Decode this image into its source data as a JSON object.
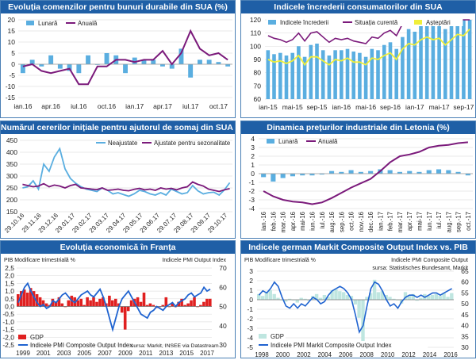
{
  "chart_data": [
    {
      "id": "durable",
      "type": "bar+line",
      "title": "Evoluția comenzilor pentru bunuri durabile din SUA (%)",
      "legend": [
        "Lunară",
        "Anuală"
      ],
      "yticks": [
        "20",
        "15",
        "10",
        "5",
        "0",
        "-5",
        "-10",
        "-15"
      ],
      "ylim": [
        -15,
        20
      ],
      "xticks": [
        "ian.16",
        "apr.16",
        "iul.16",
        "oct.16",
        "ian.17",
        "apr.17",
        "iul.17",
        "oct.17"
      ],
      "monthly": [
        -4,
        2,
        -1,
        4,
        -2,
        -3,
        -4,
        4,
        0,
        5,
        4,
        -4,
        3,
        2,
        2,
        -1,
        -2,
        7,
        -6,
        2,
        2,
        1,
        -1
      ],
      "annual": [
        -1,
        0,
        -3,
        -4,
        -3,
        -2,
        -9,
        -9,
        -1,
        -1,
        2,
        2,
        1,
        2,
        2,
        6,
        0,
        5,
        15,
        7,
        4,
        5,
        2
      ]
    },
    {
      "id": "confidence",
      "type": "bar+line",
      "title": "Indicele încrederii consumatorilor din SUA",
      "legend": [
        "Indicele încrederii",
        "Situația curentă",
        "Așteptări"
      ],
      "yticks": [
        "120",
        "110",
        "100",
        "90",
        "80",
        "70",
        "60"
      ],
      "ylim": [
        60,
        120
      ],
      "xticks": [
        "ian-15",
        "mai-15",
        "sep-15",
        "ian-16",
        "mai-16",
        "sep-16",
        "ian-17",
        "mai-17",
        "sep-17"
      ],
      "index": [
        97,
        94,
        95,
        93,
        95,
        100,
        92,
        101,
        102,
        97,
        93,
        97,
        97,
        98,
        96,
        95,
        92,
        98,
        97,
        101,
        103,
        98,
        107,
        113,
        111,
        116,
        119,
        117,
        118,
        113,
        117,
        121,
        120,
        126
      ],
      "current": [
        108,
        106,
        105,
        103,
        105,
        110,
        104,
        110,
        111,
        107,
        103,
        106,
        105,
        106,
        104,
        103,
        102,
        107,
        106,
        110,
        112,
        108,
        117,
        123,
        121,
        126,
        132,
        130,
        130,
        124,
        130,
        132,
        131,
        134
      ],
      "expectations": [
        90,
        88,
        89,
        87,
        89,
        93,
        86,
        92,
        92,
        89,
        86,
        90,
        89,
        91,
        88,
        88,
        86,
        91,
        90,
        93,
        95,
        90,
        98,
        102,
        101,
        105,
        107,
        105,
        106,
        101,
        105,
        109,
        108,
        113
      ]
    },
    {
      "id": "claims",
      "type": "line",
      "title": "Numărul cererilor inițiale pentru ajutorul de somaj din SUA (mii)",
      "legend": [
        "Neajustate",
        "Ajustate pentru sezonalitate"
      ],
      "yticks": [
        "450",
        "400",
        "350",
        "300",
        "250",
        "200",
        "150"
      ],
      "ylim": [
        150,
        450
      ],
      "xticks": [
        "29.10.16",
        "29.11.16",
        "29.12.16",
        "29.01.17",
        "29.02.17",
        "29.03.17",
        "29.04.17",
        "29.05.17",
        "29.06.17",
        "29.07.17",
        "29.08.17",
        "29.09.17",
        "29.10.17"
      ],
      "unadjusted": [
        250,
        255,
        280,
        245,
        350,
        320,
        380,
        415,
        330,
        290,
        270,
        255,
        245,
        240,
        235,
        250,
        240,
        225,
        230,
        222,
        215,
        225,
        240,
        235,
        225,
        220,
        230,
        220,
        245,
        235,
        225,
        230,
        260,
        238,
        225,
        230,
        232,
        220,
        242,
        272
      ],
      "adjusted": [
        265,
        260,
        255,
        258,
        268,
        255,
        262,
        258,
        250,
        260,
        265,
        250,
        248,
        245,
        243,
        250,
        240,
        242,
        245,
        240,
        238,
        244,
        248,
        242,
        245,
        240,
        250,
        245,
        248,
        242,
        250,
        255,
        275,
        265,
        258,
        245,
        240,
        235,
        242,
        247
      ]
    },
    {
      "id": "latvia",
      "type": "bar+line",
      "title": "Dinamica prețurilor industriale din Letonia (%)",
      "legend": [
        "Lunară",
        "Anuală"
      ],
      "yticks": [
        "4",
        "3",
        "2",
        "1",
        "0",
        "-1",
        "-2",
        "-3",
        "-4"
      ],
      "ylim": [
        -4,
        4
      ],
      "xticks": [
        "ian.-16",
        "feb.-16",
        "mar.-16",
        "apr.-16",
        "mai-16",
        "iun.-16",
        "iul.-16",
        "aug.-16",
        "sep.-16",
        "oct.-16",
        "nov.-16",
        "dec.-16",
        "ian.-17",
        "feb.-17",
        "mar.-17",
        "apr.-17",
        "mai-17",
        "iun.-17",
        "iul.-17",
        "aug.-17",
        "sep.-17",
        "oct.-17"
      ],
      "monthly": [
        -0.4,
        -0.9,
        -0.5,
        -0.3,
        -0.2,
        -0.2,
        -0.1,
        0.3,
        0.2,
        0.4,
        0.2,
        0.3,
        0.5,
        0.4,
        0.2,
        0.3,
        0.2,
        0.4,
        0.5,
        0.4,
        0.2,
        -0.2
      ],
      "annual": [
        -2.0,
        -2.6,
        -3.0,
        -3.2,
        -3.3,
        -3.5,
        -3.3,
        -2.8,
        -2.2,
        -1.6,
        -1.1,
        -0.6,
        0.3,
        1.3,
        2.0,
        2.2,
        2.5,
        3.0,
        3.2,
        3.3,
        3.5,
        3.6
      ]
    },
    {
      "id": "france",
      "type": "bar+line",
      "title": "Evoluția economică în Franța",
      "left_axis": "PIB Modificare trimestrială %",
      "right_axis": "Indicele PMI Output Index",
      "legend": [
        "GDP",
        "Indicele PMI Composite Output Index"
      ],
      "source": "sursa: Markit, INSEE via Datastream",
      "yticks_left": [
        "2,5",
        "2,0",
        "1,5",
        "1,0",
        "0,5",
        "0,0",
        "-0,5",
        "-1,0",
        "-1,5",
        "-2,0",
        "-2,5"
      ],
      "yticks_right": [
        "70",
        "60",
        "50",
        "40",
        "30"
      ],
      "xticks": [
        "1999",
        "2001",
        "2003",
        "2005",
        "2007",
        "2009",
        "2011",
        "2013",
        "2015",
        "2017"
      ],
      "gdp": [
        0.8,
        1.0,
        1.1,
        0.9,
        1.2,
        1.0,
        0.8,
        0.6,
        0.4,
        0.2,
        0.1,
        0.5,
        0.3,
        0.6,
        0.2,
        0.0,
        0.4,
        0.7,
        0.6,
        0.4,
        0.5,
        0.1,
        0.6,
        0.4,
        0.6,
        0.3,
        0.5,
        0.6,
        0.2,
        0.7,
        0.4,
        0.5,
        0.2,
        -0.4,
        -1.5,
        -0.3,
        0.4,
        0.5,
        0.6,
        0.3,
        0.9,
        0.1,
        0.2,
        0.1,
        -0.1,
        0.0,
        0.1,
        0.6,
        0.0,
        0.2,
        0.0,
        0.3,
        0.5,
        0.1,
        0.2,
        0.4,
        0.6,
        0.0,
        0.1,
        0.3,
        0.5,
        0.5
      ],
      "pmi": [
        52,
        56,
        60,
        62,
        58,
        55,
        52,
        50,
        51,
        49,
        50,
        53,
        52,
        54,
        56,
        57,
        55,
        53,
        52,
        54,
        56,
        57,
        58,
        56,
        55,
        57,
        59,
        55,
        50,
        44,
        38,
        44,
        50,
        54,
        56,
        58,
        55,
        52,
        49,
        46,
        45,
        44,
        47,
        48,
        50,
        49,
        48,
        50,
        51,
        52,
        50,
        52,
        53,
        54,
        56,
        57,
        55,
        56,
        57,
        60,
        58,
        59
      ]
    },
    {
      "id": "germany",
      "type": "bar+line",
      "title": "Indicele german Markit Composite Output Index vs. PIB",
      "left_axis": "PIB Modificare trimestrială %",
      "right_axis": "Indicele PMI Composite Output",
      "source": "sursa: Statistisches Bundesamt, Markit",
      "legend": [
        "GDP",
        "Indicele PMI Markit Composite Output Index"
      ],
      "yticks_left": [
        "3",
        "2",
        "1",
        "0",
        "-1",
        "-2",
        "-3",
        "-4",
        "-5"
      ],
      "yticks_right": [
        "65",
        "60",
        "55",
        "50",
        "45",
        "40",
        "35",
        "30"
      ],
      "xticks": [
        "1998",
        "2000",
        "2002",
        "2004",
        "2006",
        "2008",
        "2010",
        "2012",
        "2014",
        "2016"
      ],
      "gdp": [
        0.6,
        0.4,
        0.8,
        1.0,
        0.6,
        0.2,
        0.0,
        -0.2,
        0.1,
        0.0,
        -0.3,
        0.2,
        0.1,
        -0.1,
        0.4,
        0.6,
        0.2,
        0.5,
        0.3,
        1.0,
        1.1,
        0.9,
        0.8,
        0.5,
        0.4,
        -0.5,
        -1.9,
        -4.5,
        0.3,
        0.7,
        2.1,
        0.8,
        0.9,
        0.5,
        0.3,
        0.1,
        0.0,
        -0.4,
        0.8,
        0.4,
        0.6,
        -0.1,
        0.2,
        0.6,
        0.4,
        0.5,
        0.6,
        0.4,
        0.7,
        0.3,
        0.7
      ],
      "pmi": [
        54,
        56,
        55,
        57,
        60,
        58,
        53,
        49,
        48,
        50,
        48,
        50,
        49,
        51,
        53,
        52,
        50,
        51,
        54,
        56,
        57,
        58,
        57,
        55,
        52,
        45,
        37,
        40,
        49,
        57,
        60,
        59,
        56,
        52,
        49,
        50,
        48,
        51,
        53,
        54,
        54,
        53,
        54,
        53,
        54,
        55,
        55,
        54,
        55,
        56,
        57
      ]
    }
  ]
}
